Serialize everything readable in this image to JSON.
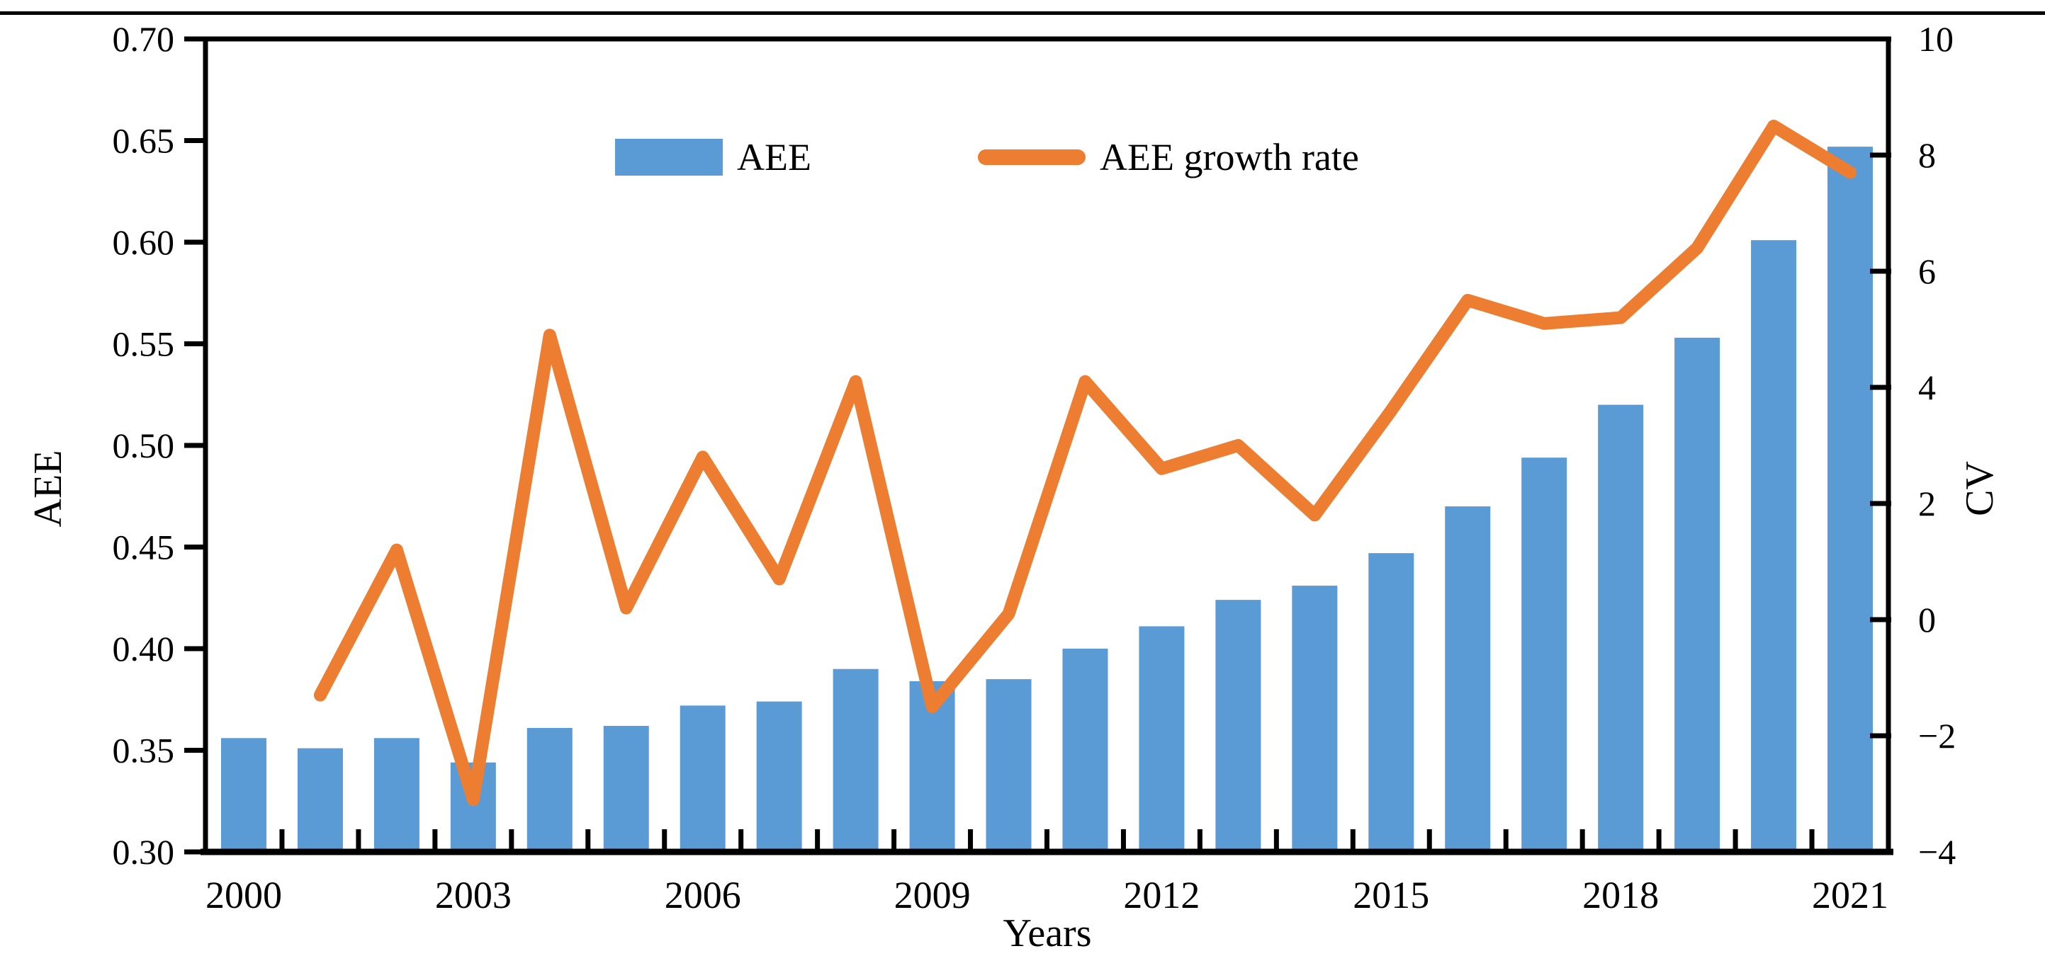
{
  "figure": {
    "background": "#ffffff",
    "separator": "top-rule"
  },
  "legend": {
    "aee_label": "AEE",
    "growth_label": "AEE growth rate"
  },
  "axes": {
    "y_left": {
      "title": "AEE",
      "min": 0.3,
      "max": 0.7,
      "ticks": [
        {
          "v": 0.3,
          "label": "0.30"
        },
        {
          "v": 0.35,
          "label": "0.35"
        },
        {
          "v": 0.4,
          "label": "0.40"
        },
        {
          "v": 0.45,
          "label": "0.45"
        },
        {
          "v": 0.5,
          "label": "0.50"
        },
        {
          "v": 0.55,
          "label": "0.55"
        },
        {
          "v": 0.6,
          "label": "0.60"
        },
        {
          "v": 0.65,
          "label": "0.65"
        },
        {
          "v": 0.7,
          "label": "0.70"
        }
      ]
    },
    "y_right": {
      "title": "CV",
      "min": -4,
      "max": 10,
      "ticks": [
        {
          "v": 10,
          "label": "10"
        },
        {
          "v": 8,
          "label": "8"
        },
        {
          "v": 6,
          "label": "6"
        },
        {
          "v": 4,
          "label": "4"
        },
        {
          "v": 2,
          "label": "2"
        },
        {
          "v": 0,
          "label": "0"
        },
        {
          "v": -2,
          "label": "−2"
        },
        {
          "v": -4,
          "label": "−4"
        }
      ]
    },
    "x": {
      "title": "Years",
      "ticks": [
        {
          "i": 0,
          "label": "2000"
        },
        {
          "i": 3,
          "label": "2003"
        },
        {
          "i": 6,
          "label": "2006"
        },
        {
          "i": 9,
          "label": "2009"
        },
        {
          "i": 12,
          "label": "2012"
        },
        {
          "i": 15,
          "label": "2015"
        },
        {
          "i": 18,
          "label": "2018"
        },
        {
          "i": 21,
          "label": "2021"
        }
      ]
    }
  },
  "colors": {
    "bar": "#5B9BD5",
    "line": "#ED7D31",
    "axis": "#000000",
    "text": "#000000"
  },
  "chart_data": {
    "type": "combo",
    "categories": [
      2000,
      2001,
      2002,
      2003,
      2004,
      2005,
      2006,
      2007,
      2008,
      2009,
      2010,
      2011,
      2012,
      2013,
      2014,
      2015,
      2016,
      2017,
      2018,
      2019,
      2020,
      2021
    ],
    "series": [
      {
        "name": "AEE",
        "type": "bar",
        "axis": "left",
        "values": [
          0.356,
          0.351,
          0.356,
          0.344,
          0.361,
          0.362,
          0.372,
          0.374,
          0.39,
          0.384,
          0.385,
          0.4,
          0.411,
          0.424,
          0.431,
          0.447,
          0.47,
          0.494,
          0.52,
          0.553,
          0.601,
          0.647
        ]
      },
      {
        "name": "AEE growth rate",
        "type": "line",
        "axis": "right",
        "values": [
          null,
          -1.3,
          1.2,
          -3.1,
          4.9,
          0.2,
          2.8,
          0.7,
          4.1,
          -1.5,
          0.1,
          4.1,
          2.6,
          3.0,
          1.8,
          3.6,
          5.5,
          5.1,
          5.2,
          6.4,
          8.5,
          7.7
        ]
      }
    ],
    "title": "",
    "xlabel": "Years",
    "ylabel_left": "AEE",
    "ylabel_right": "CV",
    "y_left_range": [
      0.3,
      0.7
    ],
    "y_right_range": [
      -4,
      10
    ],
    "grid": false,
    "legend_position": "top-center"
  }
}
